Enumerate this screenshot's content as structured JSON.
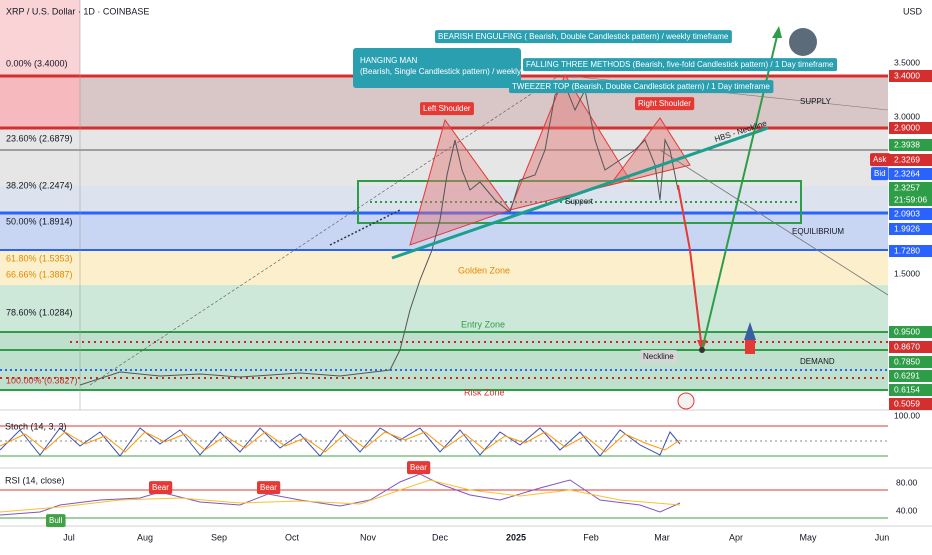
{
  "header": {
    "symbol": "XRP / U.S. Dollar · 1D · COINBASE",
    "currency": "USD"
  },
  "fib_levels": [
    "0.00% (3.4000)",
    "23.60% (2.6879)",
    "38.20% (2.2474)",
    "50.00% (1.8914)",
    "61.80% (1.5353)",
    "66.66% (1.3887)",
    "78.60% (1.0284)",
    "100.00% (0.3827)"
  ],
  "price_labels": [
    "3.4000",
    "2.9000",
    "2.3938",
    "2.3269",
    "2.3264",
    "2.3257",
    "21:59:06",
    "2.0903",
    "1.9926",
    "1.7280",
    "0.9500",
    "0.8670",
    "0.7850",
    "0.6291",
    "0.6154",
    "0.5059"
  ],
  "axis_ticks": [
    "3.5000",
    "3.0000",
    "1.5000"
  ],
  "quote": {
    "ask": "Ask",
    "bid": "Bid"
  },
  "patterns": {
    "bearish_engulfing": "BEARISH ENGULFING ( Bearish, Double Candlestick pattern) / weekly timeframe",
    "hanging_man_title": "HANGING MAN",
    "hanging_man_detail": "(Bearish, Single Candlestick pattern) / weekly timeframe",
    "falling_three": "FALLING THREE METHODS (Bearish, five-fold Candlestick pattern) / 1 Day timeframe",
    "tweezer_top": "TWEEZER TOP (Bearish, Double Candlestick pattern) / 1 Day timeframe"
  },
  "annotations": {
    "left_shoulder": "Left Shoulder",
    "right_shoulder": "Right Shoulder",
    "neckline_hbs": "HBS - Neckline",
    "support": "Support",
    "supply": "SUPPLY",
    "equilibrium": "EQUILIBRIUM",
    "demand": "DEMAND",
    "golden_zone": "Golden Zone",
    "entry_zone": "Entry Zone",
    "risk_zone": "Risk Zone",
    "neckline": "Neckline"
  },
  "stoch": {
    "label": "Stoch (14, 3, 3)",
    "tick": "100.00"
  },
  "rsi": {
    "label": "RSI (14, close)",
    "ticks": [
      "80.00",
      "40.00"
    ],
    "signals": [
      "Bear",
      "Bear",
      "Bear",
      "Bull"
    ]
  },
  "x_axis": [
    "Jul",
    "Aug",
    "Sep",
    "Oct",
    "Nov",
    "Dec",
    "2025",
    "Feb",
    "Mar",
    "Apr",
    "May",
    "Jun"
  ]
}
